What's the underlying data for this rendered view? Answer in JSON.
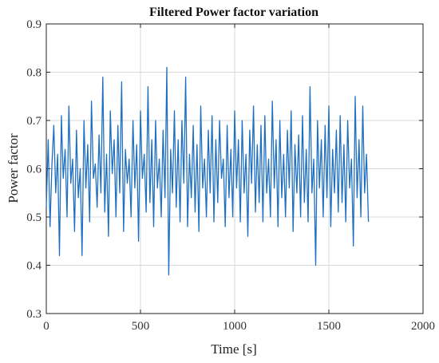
{
  "chart_data": {
    "type": "line",
    "title": "Filtered Power factor variation",
    "xlabel": "Time [s]",
    "ylabel": "Power factor",
    "xlim": [
      0,
      2000
    ],
    "ylim": [
      0.3,
      0.9
    ],
    "x_ticks": [
      "0",
      "500",
      "1000",
      "1500",
      "2000"
    ],
    "y_ticks": [
      "0.3",
      "0.4",
      "0.5",
      "0.6",
      "0.7",
      "0.8",
      "0.9"
    ],
    "grid": true,
    "line_color": "#1f6fc0",
    "series": [
      {
        "x_start": 0,
        "x_step": 10,
        "values": [
          0.52,
          0.66,
          0.48,
          0.61,
          0.69,
          0.55,
          0.63,
          0.42,
          0.71,
          0.58,
          0.64,
          0.5,
          0.73,
          0.57,
          0.62,
          0.47,
          0.68,
          0.54,
          0.6,
          0.42,
          0.7,
          0.56,
          0.65,
          0.49,
          0.74,
          0.58,
          0.61,
          0.52,
          0.67,
          0.55,
          0.79,
          0.51,
          0.63,
          0.46,
          0.72,
          0.59,
          0.66,
          0.5,
          0.69,
          0.55,
          0.78,
          0.47,
          0.64,
          0.57,
          0.62,
          0.5,
          0.7,
          0.56,
          0.65,
          0.45,
          0.72,
          0.58,
          0.63,
          0.51,
          0.77,
          0.53,
          0.66,
          0.48,
          0.7,
          0.56,
          0.62,
          0.5,
          0.68,
          0.54,
          0.81,
          0.38,
          0.64,
          0.55,
          0.72,
          0.52,
          0.66,
          0.49,
          0.7,
          0.57,
          0.79,
          0.48,
          0.63,
          0.54,
          0.69,
          0.51,
          0.65,
          0.47,
          0.73,
          0.56,
          0.62,
          0.5,
          0.68,
          0.55,
          0.71,
          0.49,
          0.66,
          0.53,
          0.7,
          0.58,
          0.62,
          0.48,
          0.69,
          0.54,
          0.64,
          0.5,
          0.72,
          0.56,
          0.66,
          0.49,
          0.7,
          0.55,
          0.63,
          0.46,
          0.68,
          0.57,
          0.73,
          0.51,
          0.65,
          0.53,
          0.69,
          0.49,
          0.71,
          0.55,
          0.62,
          0.5,
          0.74,
          0.56,
          0.66,
          0.48,
          0.7,
          0.54,
          0.63,
          0.5,
          0.68,
          0.56,
          0.72,
          0.47,
          0.65,
          0.55,
          0.67,
          0.5,
          0.71,
          0.53,
          0.64,
          0.49,
          0.77,
          0.55,
          0.62,
          0.4,
          0.7,
          0.56,
          0.66,
          0.5,
          0.69,
          0.54,
          0.73,
          0.48,
          0.64,
          0.55,
          0.68,
          0.51,
          0.71,
          0.53,
          0.65,
          0.49,
          0.7,
          0.56,
          0.62,
          0.44,
          0.75,
          0.54,
          0.66,
          0.5,
          0.73,
          0.55,
          0.63,
          0.49
        ]
      }
    ]
  }
}
